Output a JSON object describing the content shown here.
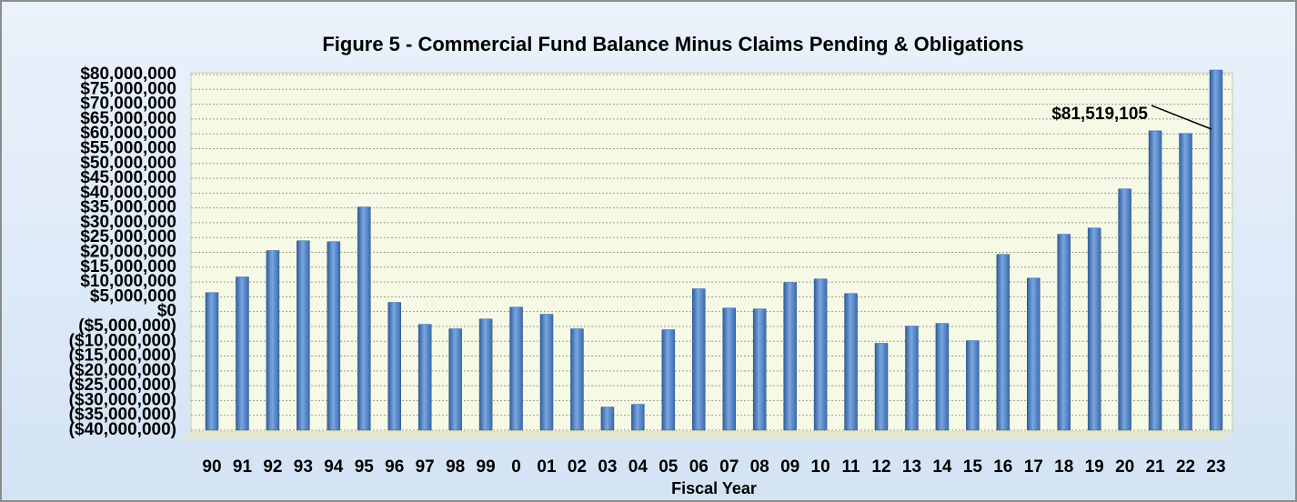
{
  "chart_data": {
    "type": "bar",
    "title": "Figure 5 - Commercial Fund Balance Minus Claims Pending & Obligations",
    "x_label": "Fiscal Year",
    "categories": [
      "90",
      "91",
      "92",
      "93",
      "94",
      "95",
      "96",
      "97",
      "98",
      "99",
      "0",
      "01",
      "02",
      "03",
      "04",
      "05",
      "06",
      "07",
      "08",
      "09",
      "10",
      "11",
      "12",
      "13",
      "14",
      "15",
      "16",
      "17",
      "18",
      "19",
      "20",
      "21",
      "22",
      "23"
    ],
    "values": [
      6400000,
      11700000,
      20600000,
      23900000,
      23600000,
      35300000,
      3100000,
      -4300000,
      -5800000,
      -2500000,
      1500000,
      -900000,
      -5800000,
      -32200000,
      -31300000,
      -6100000,
      7700000,
      1200000,
      900000,
      9800000,
      11000000,
      6100000,
      -10700000,
      -4900000,
      -4000000,
      -9800000,
      19300000,
      11300000,
      26100000,
      28200000,
      41400000,
      61000000,
      60100000,
      81519105
    ],
    "annotation": {
      "label": "$81,519,105",
      "category": "23"
    },
    "color": "#4f81bd",
    "ylim": [
      -40000000,
      80000000
    ],
    "yticks": [
      {
        "value": 80000000,
        "label": "$80,000,000"
      },
      {
        "value": 75000000,
        "label": "$75,000,000"
      },
      {
        "value": 70000000,
        "label": "$70,000,000"
      },
      {
        "value": 65000000,
        "label": "$65,000,000"
      },
      {
        "value": 60000000,
        "label": "$60,000,000"
      },
      {
        "value": 55000000,
        "label": "$55,000,000"
      },
      {
        "value": 50000000,
        "label": "$50,000,000"
      },
      {
        "value": 45000000,
        "label": "$45,000,000"
      },
      {
        "value": 40000000,
        "label": "$40,000,000"
      },
      {
        "value": 35000000,
        "label": "$35,000,000"
      },
      {
        "value": 30000000,
        "label": "$30,000,000"
      },
      {
        "value": 25000000,
        "label": "$25,000,000"
      },
      {
        "value": 20000000,
        "label": "$20,000,000"
      },
      {
        "value": 15000000,
        "label": "$15,000,000"
      },
      {
        "value": 10000000,
        "label": "$10,000,000"
      },
      {
        "value": 5000000,
        "label": "$5,000,000"
      },
      {
        "value": 0,
        "label": "$0"
      },
      {
        "value": -5000000,
        "label": "($5,000,000)"
      },
      {
        "value": -10000000,
        "label": "($10,000,000)"
      },
      {
        "value": -15000000,
        "label": "($15,000,000)"
      },
      {
        "value": -20000000,
        "label": "($20,000,000)"
      },
      {
        "value": -25000000,
        "label": "($25,000,000)"
      },
      {
        "value": -30000000,
        "label": "($30,000,000)"
      },
      {
        "value": -35000000,
        "label": "($35,000,000)"
      },
      {
        "value": -40000000,
        "label": "($40,000,000)"
      }
    ],
    "grid": true
  }
}
